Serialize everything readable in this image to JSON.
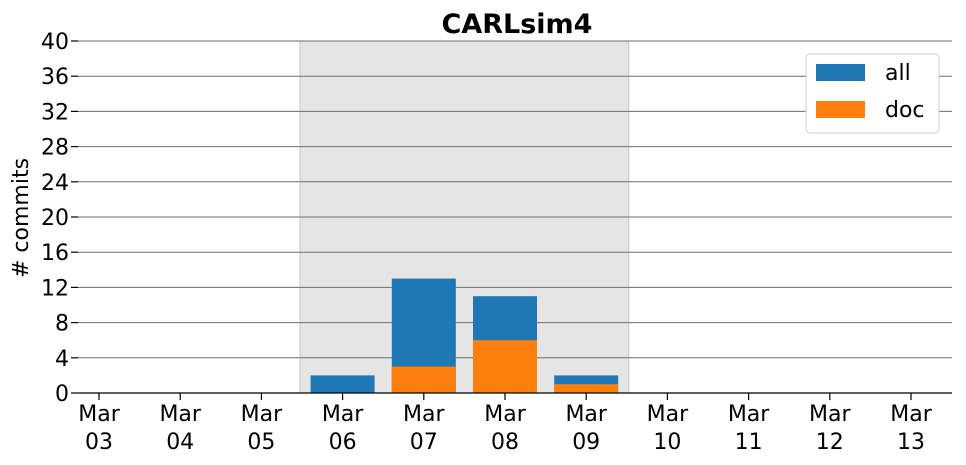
{
  "chart_data": {
    "type": "bar",
    "title": "CARLsim4",
    "ylabel": "# commits",
    "xlabel": "",
    "ylim": [
      0,
      40
    ],
    "yticks": [
      0,
      4,
      8,
      12,
      16,
      20,
      24,
      28,
      32,
      36,
      40
    ],
    "grid": "y",
    "legend_position": "top-right",
    "highlight_range": [
      "Mar 06",
      "Mar 09"
    ],
    "categories": [
      [
        "Mar",
        "03"
      ],
      [
        "Mar",
        "04"
      ],
      [
        "Mar",
        "05"
      ],
      [
        "Mar",
        "06"
      ],
      [
        "Mar",
        "07"
      ],
      [
        "Mar",
        "08"
      ],
      [
        "Mar",
        "09"
      ],
      [
        "Mar",
        "10"
      ],
      [
        "Mar",
        "11"
      ],
      [
        "Mar",
        "12"
      ],
      [
        "Mar",
        "13"
      ]
    ],
    "bars": [
      {
        "x": "Mar 06",
        "all": 2,
        "doc": 0
      },
      {
        "x": "Mar 07",
        "all": 13,
        "doc": 3
      },
      {
        "x": "Mar 08",
        "all": 11,
        "doc": 6
      },
      {
        "x": "Mar 09",
        "all": 2,
        "doc": 1
      }
    ],
    "series": [
      {
        "name": "all",
        "color": "#1f77b4"
      },
      {
        "name": "doc",
        "color": "#ff7f0e"
      }
    ]
  }
}
